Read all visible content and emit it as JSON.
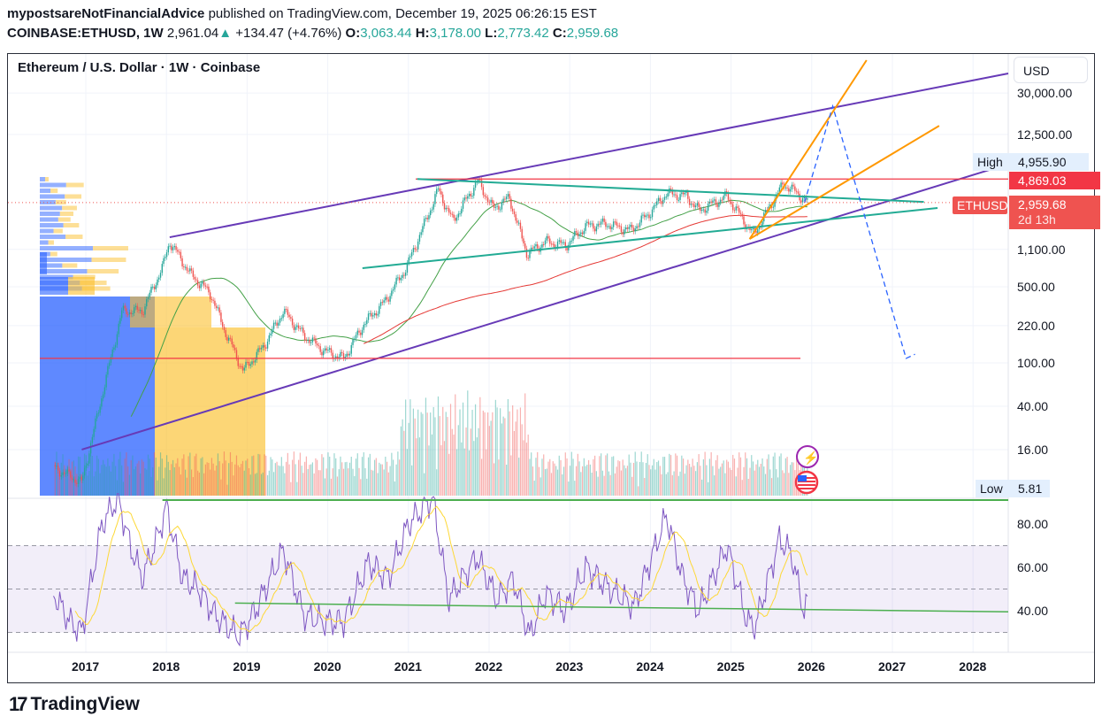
{
  "header": {
    "author": "mypostsareNotFinancialAdvice",
    "published": "published on TradingView.com, December 19, 2025 06:26:15 EST",
    "symbol": "COINBASE:ETHUSD, 1W",
    "last": "2,961.04",
    "change": "+134.47 (+4.76%)",
    "o_label": "O:",
    "o": "3,063.44",
    "h_label": "H:",
    "h": "3,178.00",
    "l_label": "L:",
    "l": "2,773.42",
    "c_label": "C:",
    "c": "2,959.68"
  },
  "chart_title": "Ethereum / U.S. Dollar · 1W · Coinbase",
  "currency": "USD",
  "badges": {
    "high_label": "High",
    "high": "4,955.90",
    "level": "4,869.03",
    "symbol": "ETHUSD",
    "price": "2,959.68",
    "countdown": "2d 13h",
    "low_label": "Low",
    "low": "5.81"
  },
  "icons": [
    "lightning-icon",
    "us-flag-icon",
    "up-triangle-icon"
  ],
  "colors": {
    "up": "#26a69a",
    "down": "#ef5350",
    "channel": "#673ab7",
    "resistance": "#f23645",
    "teal": "#22ab94",
    "orange": "#ff9800",
    "projection": "#2962ff",
    "rsi": "#7e57c2",
    "rsi_ma": "#fdd835",
    "sma_fast": "#43a047",
    "sma_slow": "#e53935",
    "vp_blue": "#2962ff",
    "vp_yellow": "#fbc02d"
  },
  "footer": {
    "brand": "TradingView"
  },
  "chart_data": {
    "type": "candlestick",
    "scale": "log",
    "ylim": [
      5.81,
      60000
    ],
    "xlim": [
      2016.4,
      2028.45
    ],
    "grid": true,
    "y_ticks": [
      "30,000.00",
      "12,500.00",
      "1,100.00",
      "500.00",
      "220.00",
      "100.00",
      "40.00",
      "16.00"
    ],
    "y_tick_values": [
      30000,
      12500,
      1100,
      500,
      220,
      100,
      40,
      16
    ],
    "x_ticks": [
      "2017",
      "2018",
      "2019",
      "2020",
      "2021",
      "2022",
      "2023",
      "2024",
      "2025",
      "2026",
      "2027",
      "2028"
    ],
    "price_path": [
      [
        2016.6,
        11
      ],
      [
        2016.95,
        8
      ],
      [
        2017.2,
        50
      ],
      [
        2017.45,
        300
      ],
      [
        2017.7,
        300
      ],
      [
        2017.95,
        750
      ],
      [
        2018.04,
        1300
      ],
      [
        2018.3,
        650
      ],
      [
        2018.55,
        430
      ],
      [
        2018.72,
        200
      ],
      [
        2018.95,
        85
      ],
      [
        2019.2,
        140
      ],
      [
        2019.45,
        300
      ],
      [
        2019.7,
        180
      ],
      [
        2019.95,
        130
      ],
      [
        2020.2,
        110
      ],
      [
        2020.45,
        230
      ],
      [
        2020.7,
        360
      ],
      [
        2020.97,
        740
      ],
      [
        2021.2,
        1900
      ],
      [
        2021.37,
        3900
      ],
      [
        2021.55,
        2000
      ],
      [
        2021.86,
        4700
      ],
      [
        2022.05,
        2600
      ],
      [
        2022.25,
        3300
      ],
      [
        2022.47,
        1000
      ],
      [
        2022.7,
        1300
      ],
      [
        2022.95,
        1200
      ],
      [
        2023.2,
        1800
      ],
      [
        2023.45,
        1900
      ],
      [
        2023.75,
        1650
      ],
      [
        2023.97,
        2300
      ],
      [
        2024.2,
        3600
      ],
      [
        2024.45,
        3400
      ],
      [
        2024.6,
        2500
      ],
      [
        2024.95,
        3400
      ],
      [
        2025.12,
        2200
      ],
      [
        2025.28,
        1500
      ],
      [
        2025.45,
        2500
      ],
      [
        2025.65,
        4400
      ],
      [
        2025.78,
        3800
      ],
      [
        2025.96,
        2960
      ]
    ],
    "indicators": {
      "sma_fast_weeks": 50,
      "sma_slow_weeks": 200
    },
    "annotations": [
      {
        "type": "trendline",
        "color": "#673ab7",
        "from": [
          2018.04,
          1422
        ],
        "to": [
          2028.44,
          45300
        ]
      },
      {
        "type": "trendline",
        "color": "#673ab7",
        "from": [
          2016.95,
          16
        ],
        "to": [
          2028.27,
          6120
        ]
      },
      {
        "type": "horizontal",
        "color": "#f23645",
        "from": [
          2021.09,
          4869
        ],
        "to": [
          2028.45,
          4869
        ]
      },
      {
        "type": "horizontal",
        "color": "#f23645",
        "from": [
          2016.43,
          110
        ],
        "to": [
          2025.86,
          110
        ]
      },
      {
        "type": "trendline",
        "color": "#22ab94",
        "from": [
          2021.11,
          4869
        ],
        "to": [
          2027.39,
          3000
        ]
      },
      {
        "type": "trendline",
        "color": "#22ab94",
        "from": [
          2020.43,
          740
        ],
        "to": [
          2027.56,
          2640
        ]
      },
      {
        "type": "trendline",
        "color": "#ff9800",
        "from": [
          2025.23,
          1370
        ],
        "to": [
          2026.68,
          60000
        ]
      },
      {
        "type": "trendline",
        "color": "#ff9800",
        "from": [
          2025.23,
          1370
        ],
        "to": [
          2027.58,
          15000
        ]
      },
      {
        "type": "projection",
        "color": "#2962ff",
        "points": [
          [
            2025.91,
            2959
          ],
          [
            2026.26,
            22700
          ],
          [
            2027.17,
            110
          ],
          [
            2027.28,
            120
          ]
        ]
      }
    ],
    "rsi": {
      "y_ticks": [
        "80.00",
        "60.00",
        "40.00"
      ],
      "y_tick_values": [
        80,
        60,
        40
      ],
      "bands": [
        70,
        50,
        30
      ],
      "ylim": [
        22,
        94
      ],
      "values": [
        [
          2016.6,
          48
        ],
        [
          2016.8,
          35
        ],
        [
          2016.95,
          30
        ],
        [
          2017.2,
          80
        ],
        [
          2017.4,
          92
        ],
        [
          2017.55,
          70
        ],
        [
          2017.7,
          55
        ],
        [
          2017.9,
          75
        ],
        [
          2018.0,
          88
        ],
        [
          2018.2,
          55
        ],
        [
          2018.4,
          50
        ],
        [
          2018.6,
          38
        ],
        [
          2018.9,
          28
        ],
        [
          2019.1,
          40
        ],
        [
          2019.45,
          68
        ],
        [
          2019.7,
          38
        ],
        [
          2019.95,
          35
        ],
        [
          2020.2,
          35
        ],
        [
          2020.5,
          62
        ],
        [
          2020.75,
          55
        ],
        [
          2021.0,
          80
        ],
        [
          2021.3,
          92
        ],
        [
          2021.5,
          45
        ],
        [
          2021.85,
          65
        ],
        [
          2022.1,
          45
        ],
        [
          2022.3,
          55
        ],
        [
          2022.5,
          28
        ],
        [
          2022.7,
          48
        ],
        [
          2022.95,
          40
        ],
        [
          2023.2,
          60
        ],
        [
          2023.5,
          50
        ],
        [
          2023.8,
          42
        ],
        [
          2024.2,
          84
        ],
        [
          2024.4,
          55
        ],
        [
          2024.6,
          40
        ],
        [
          2024.95,
          70
        ],
        [
          2025.2,
          35
        ],
        [
          2025.3,
          33
        ],
        [
          2025.6,
          73
        ],
        [
          2025.75,
          66
        ],
        [
          2025.9,
          40
        ],
        [
          2025.95,
          43
        ]
      ],
      "annotations": [
        {
          "type": "horizontal",
          "color": "#4caf50",
          "value": 94,
          "from": 2017.95,
          "to": 2028.45
        },
        {
          "type": "trendline",
          "color": "#4caf50",
          "from": [
            2018.85,
            43.5
          ],
          "to": [
            2028.45,
            39.5
          ]
        }
      ]
    }
  }
}
